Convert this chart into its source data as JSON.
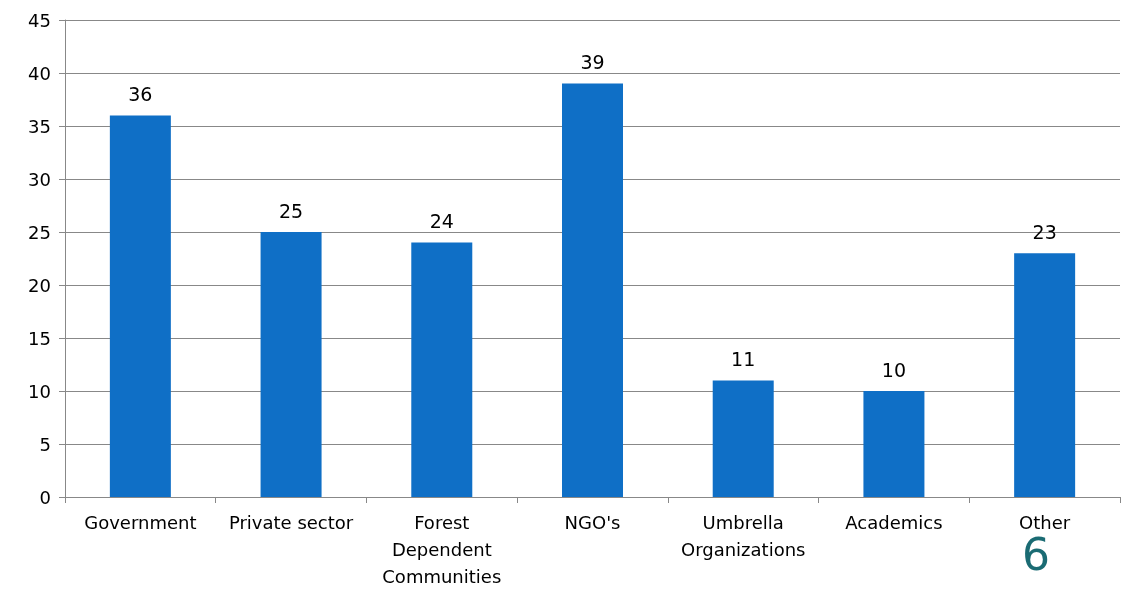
{
  "chart_data": {
    "type": "bar",
    "categories": [
      "Government",
      "Private sector",
      "Forest\nDependent\nCommunities",
      "NGO's",
      "Umbrella\nOrganizations",
      "Academics",
      "Other"
    ],
    "values": [
      36,
      25,
      24,
      39,
      11,
      10,
      23
    ],
    "color": "#0f6fc6",
    "ylim": [
      0,
      45
    ],
    "yticks": [
      0,
      5,
      10,
      15,
      20,
      25,
      30,
      35,
      40,
      45
    ],
    "grid": "y",
    "data_labels": true,
    "annotations": [
      "6"
    ]
  }
}
